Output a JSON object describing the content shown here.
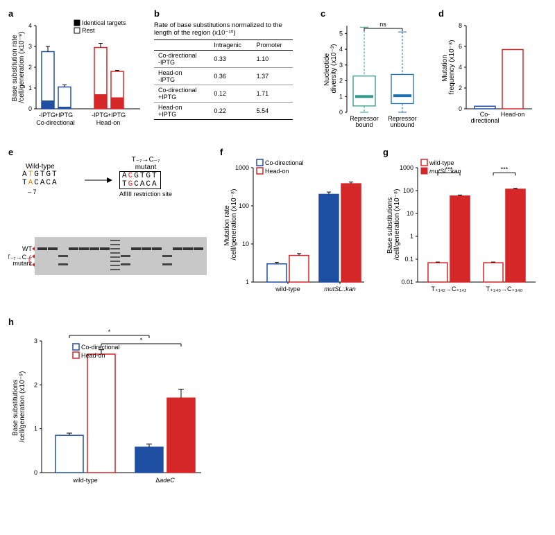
{
  "panel_a": {
    "label": "a",
    "type": "bar",
    "ylabel": "Base substitution rate\n/cell/generation (x10⁻⁹)",
    "ylim": [
      0,
      4
    ],
    "yticks": [
      0,
      1,
      2,
      3,
      4
    ],
    "legend": [
      {
        "label": "Identical targets",
        "fill": "#000000"
      },
      {
        "label": "Rest",
        "fill": "#ffffff"
      }
    ],
    "groups": [
      {
        "name": "Co-directional",
        "xlabels": [
          "-IPTG",
          "+IPTG"
        ],
        "bars": [
          {
            "total": 2.75,
            "err": 0.25,
            "filled": 0.4,
            "color_filled": "#1f4fa3",
            "color_outline": "#1f4fa3"
          },
          {
            "total": 1.05,
            "err": 0.1,
            "filled": 0.1,
            "color_filled": "#1f4fa3",
            "color_outline": "#1f4fa3"
          }
        ]
      },
      {
        "name": "Head-on",
        "xlabels": [
          "-IPTG",
          "+IPTG"
        ],
        "bars": [
          {
            "total": 2.95,
            "err": 0.2,
            "filled": 0.7,
            "color_filled": "#d62728",
            "color_outline": "#d62728"
          },
          {
            "total": 1.8,
            "err": 0.05,
            "filled": 0.55,
            "color_filled": "#d62728",
            "color_outline": "#d62728"
          }
        ]
      }
    ]
  },
  "panel_b": {
    "label": "b",
    "title": "Rate of base substitutions normalized to the length of the region (x10⁻¹⁰)",
    "columns": [
      "",
      "Intragenic",
      "Promoter"
    ],
    "rows": [
      [
        "Co-directional\n-IPTG",
        "0.33",
        "1.10"
      ],
      [
        "Head-on\n-IPTG",
        "0.36",
        "1.37"
      ],
      [
        "Co-directional\n+IPTG",
        "0.12",
        "1.71"
      ],
      [
        "Head-on\n+IPTG",
        "0.22",
        "5.54"
      ]
    ]
  },
  "panel_c": {
    "label": "c",
    "type": "boxplot",
    "ylabel": "Nucleotide diversity (x10⁻³)",
    "ylim": [
      0,
      5.5
    ],
    "yticks": [
      0,
      1,
      2,
      3,
      4,
      5
    ],
    "ns_label": "ns",
    "boxes": [
      {
        "label": "Repressor\nbound",
        "min": 0,
        "q1": 0.4,
        "med": 1.0,
        "q3": 2.3,
        "max": 5.4,
        "color": "#2e9b8f"
      },
      {
        "label": "Repressor\nunbound",
        "min": 0,
        "q1": 0.55,
        "med": 1.05,
        "q3": 2.4,
        "max": 5.1,
        "color": "#1f6fb3"
      }
    ]
  },
  "panel_d": {
    "label": "d",
    "type": "bar",
    "ylabel": "Mutation\nfrequency (x10⁻⁸)",
    "ylim": [
      0,
      8
    ],
    "yticks": [
      0,
      2,
      4,
      6,
      8
    ],
    "bars": [
      {
        "label": "Co-\ndirectional",
        "value": 0.25,
        "color": "#1f4fa3"
      },
      {
        "label": "Head-on",
        "value": 5.7,
        "color": "#d62728"
      }
    ]
  },
  "panel_e": {
    "label": "e",
    "wt_title": "Wild-type",
    "mut_title": "T₋₇→C₋₇\nmutant",
    "wt_top": "ATGTGT",
    "wt_bot": "TACACA",
    "mut_top": "ACGTGT",
    "mut_bot": "TGCACA",
    "highlight_pos": 1,
    "wt_hl_top": "T",
    "wt_hl_bot": "A",
    "wt_hl_color": "#d68a00",
    "mut_hl_top": "C",
    "mut_hl_bot": "G",
    "mut_hl_color": "#d62728",
    "enzyme": "AflIII restriction site",
    "minus7": "– 7",
    "gel_lanes": 16,
    "gel_wt_label": "WT",
    "gel_mut_label": "T₋₇→C₋₇\nmutant",
    "gel_arrow_color": "#d62728",
    "gel_data": [
      {
        "lane": 0,
        "wt": true,
        "mut": false
      },
      {
        "lane": 1,
        "wt": true,
        "mut": false
      },
      {
        "lane": 2,
        "wt": false,
        "mut": true
      },
      {
        "lane": 3,
        "wt": true,
        "mut": false
      },
      {
        "lane": 4,
        "wt": true,
        "mut": false
      },
      {
        "lane": 5,
        "wt": true,
        "mut": false
      },
      {
        "lane": 6,
        "wt": true,
        "mut": false
      },
      {
        "lane": 7,
        "wt": true,
        "mut": true,
        "ladder": true
      },
      {
        "lane": 8,
        "wt": false,
        "mut": true
      },
      {
        "lane": 9,
        "wt": true,
        "mut": false
      },
      {
        "lane": 10,
        "wt": true,
        "mut": false
      },
      {
        "lane": 11,
        "wt": true,
        "mut": false
      },
      {
        "lane": 12,
        "wt": false,
        "mut": true
      },
      {
        "lane": 13,
        "wt": true,
        "mut": false
      },
      {
        "lane": 14,
        "wt": true,
        "mut": false
      },
      {
        "lane": 15,
        "wt": true,
        "mut": false
      }
    ]
  },
  "panel_f": {
    "label": "f",
    "type": "bar-log",
    "ylabel": "Mutation rate\n/cell/generation (x10⁻⁸)",
    "ylim_log": [
      1,
      1000
    ],
    "yticks": [
      1,
      10,
      100,
      1000
    ],
    "legend": [
      {
        "label": "Co-directional",
        "fill": "#ffffff",
        "stroke": "#1f4fa3"
      },
      {
        "label": "Head-on",
        "fill": "#ffffff",
        "stroke": "#d62728"
      }
    ],
    "groups": [
      {
        "x": "wild-type",
        "bars": [
          {
            "value": 3.0,
            "err": 0.3,
            "fill": "#ffffff",
            "stroke": "#1f4fa3"
          },
          {
            "value": 5.0,
            "err": 0.6,
            "fill": "#ffffff",
            "stroke": "#d62728"
          }
        ]
      },
      {
        "x": "mutSL::kan",
        "italic": true,
        "bars": [
          {
            "value": 200,
            "err": 30,
            "fill": "#1f4fa3",
            "stroke": "#1f4fa3"
          },
          {
            "value": 380,
            "err": 40,
            "fill": "#d62728",
            "stroke": "#d62728"
          }
        ]
      }
    ]
  },
  "panel_g": {
    "label": "g",
    "type": "bar-log",
    "ylabel": "Base substitutions\n/cell/generation (x10⁻⁸)",
    "ylim_log": [
      0.01,
      1000
    ],
    "yticks": [
      0.01,
      0.1,
      1,
      10,
      100,
      1000
    ],
    "legend": [
      {
        "label": "wild-type",
        "fill": "#ffffff",
        "stroke": "#d62728"
      },
      {
        "label": "mutSL::kan",
        "italic": true,
        "fill": "#d62728",
        "stroke": "#d62728"
      }
    ],
    "sig": "***",
    "groups": [
      {
        "x": "T₊₁₄₂→C₊₁₄₂",
        "bars": [
          {
            "value": 0.07,
            "err": 0.005,
            "fill": "#ffffff",
            "stroke": "#d62728"
          },
          {
            "value": 58,
            "err": 6,
            "fill": "#d62728",
            "stroke": "#d62728"
          }
        ]
      },
      {
        "x": "T₊₃₄₀→C₊₃₄₀",
        "bars": [
          {
            "value": 0.07,
            "err": 0.005,
            "fill": "#ffffff",
            "stroke": "#d62728"
          },
          {
            "value": 115,
            "err": 10,
            "fill": "#d62728",
            "stroke": "#d62728"
          }
        ]
      }
    ]
  },
  "panel_h": {
    "label": "h",
    "type": "bar",
    "ylabel": "Base substitutions\n/cell/generation (x10⁻⁹)",
    "ylim": [
      0,
      3
    ],
    "yticks": [
      0,
      1,
      2,
      3
    ],
    "legend": [
      {
        "label": "Co-directional",
        "fill": "#ffffff",
        "stroke": "#1f4fa3"
      },
      {
        "label": "Head-on",
        "fill": "#ffffff",
        "stroke": "#d62728"
      }
    ],
    "sig": "*",
    "groups": [
      {
        "x": "wild-type",
        "bars": [
          {
            "value": 0.85,
            "err": 0.05,
            "fill": "#ffffff",
            "stroke": "#1f4fa3"
          },
          {
            "value": 2.7,
            "err": 0.1,
            "fill": "#ffffff",
            "stroke": "#d62728"
          }
        ]
      },
      {
        "x": "ΔadeC",
        "italic": true,
        "bars": [
          {
            "value": 0.58,
            "err": 0.07,
            "fill": "#1f4fa3",
            "stroke": "#1f4fa3"
          },
          {
            "value": 1.7,
            "err": 0.2,
            "fill": "#d62728",
            "stroke": "#d62728"
          }
        ]
      }
    ]
  }
}
